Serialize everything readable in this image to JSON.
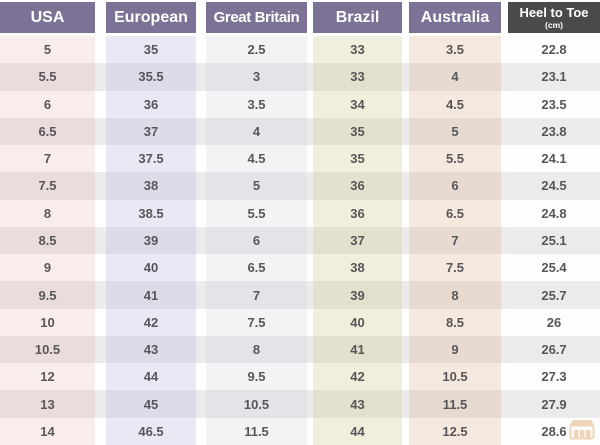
{
  "table": {
    "columns": [
      {
        "id": "usa",
        "label": "USA",
        "sublabel": "",
        "header_bg": "#7b7296",
        "header_fg": "#ffffff",
        "row_bg_odd": "#f9edeb",
        "row_bg_even": "#e9dcdb",
        "values": [
          "5",
          "5.5",
          "6",
          "6.5",
          "7",
          "7.5",
          "8",
          "8.5",
          "9",
          "9.5",
          "10",
          "10.5",
          "12",
          "13",
          "14"
        ]
      },
      {
        "id": "european",
        "label": "European",
        "sublabel": "",
        "header_bg": "#7b7296",
        "header_fg": "#ffffff",
        "row_bg_odd": "#e9e8f4",
        "row_bg_even": "#dcdbe8",
        "values": [
          "35",
          "35.5",
          "36",
          "37",
          "37.5",
          "38",
          "38.5",
          "39",
          "40",
          "41",
          "42",
          "43",
          "44",
          "45",
          "46.5"
        ]
      },
      {
        "id": "great-britain",
        "label": "Great Britain",
        "sublabel": "",
        "header_bg": "#7b7296",
        "header_fg": "#ffffff",
        "row_bg_odd": "#f3f3f6",
        "row_bg_even": "#e4e3e7",
        "values": [
          "2.5",
          "3",
          "3.5",
          "4",
          "4.5",
          "5",
          "5.5",
          "6",
          "6.5",
          "7",
          "7.5",
          "8",
          "9.5",
          "10.5",
          "11.5"
        ]
      },
      {
        "id": "brazil",
        "label": "Brazil",
        "sublabel": "",
        "header_bg": "#7b7296",
        "header_fg": "#ffffff",
        "row_bg_odd": "#f0efdc",
        "row_bg_even": "#e2e1cd",
        "values": [
          "33",
          "33",
          "34",
          "35",
          "35",
          "36",
          "36",
          "37",
          "38",
          "39",
          "40",
          "41",
          "42",
          "43",
          "44"
        ]
      },
      {
        "id": "australia",
        "label": "Australia",
        "sublabel": "",
        "header_bg": "#7b7296",
        "header_fg": "#ffffff",
        "row_bg_odd": "#f5e9df",
        "row_bg_even": "#e7dad1",
        "values": [
          "3.5",
          "4",
          "4.5",
          "5",
          "5.5",
          "6",
          "6.5",
          "7",
          "7.5",
          "8",
          "8.5",
          "9",
          "10.5",
          "11.5",
          "12.5"
        ]
      },
      {
        "id": "heel-to-toe",
        "label": "Heel to Toe",
        "sublabel": "(cm)",
        "header_bg": "#4b494b",
        "header_fg": "#ffffff",
        "row_bg_odd": "#fdfdfd",
        "row_bg_even": "#eceaeb",
        "values": [
          "22.8",
          "23.1",
          "23.5",
          "23.8",
          "24.1",
          "24.5",
          "24.8",
          "25.1",
          "25.4",
          "25.7",
          "26",
          "26.7",
          "27.3",
          "27.9",
          "28.6"
        ]
      }
    ]
  },
  "chart_data": {
    "type": "table",
    "title": "Shoe size conversion table",
    "columns": [
      "USA",
      "European",
      "Great Britain",
      "Brazil",
      "Australia",
      "Heel to Toe (cm)"
    ],
    "rows": [
      [
        "5",
        "35",
        "2.5",
        "33",
        "3.5",
        "22.8"
      ],
      [
        "5.5",
        "35.5",
        "3",
        "33",
        "4",
        "23.1"
      ],
      [
        "6",
        "36",
        "3.5",
        "34",
        "4.5",
        "23.5"
      ],
      [
        "6.5",
        "37",
        "4",
        "35",
        "5",
        "23.8"
      ],
      [
        "7",
        "37.5",
        "4.5",
        "35",
        "5.5",
        "24.1"
      ],
      [
        "7.5",
        "38",
        "5",
        "36",
        "6",
        "24.5"
      ],
      [
        "8",
        "38.5",
        "5.5",
        "36",
        "6.5",
        "24.8"
      ],
      [
        "8.5",
        "39",
        "6",
        "37",
        "7",
        "25.1"
      ],
      [
        "9",
        "40",
        "6.5",
        "38",
        "7.5",
        "25.4"
      ],
      [
        "9.5",
        "41",
        "7",
        "39",
        "8",
        "25.7"
      ],
      [
        "10",
        "42",
        "7.5",
        "40",
        "8.5",
        "26"
      ],
      [
        "10.5",
        "43",
        "8",
        "41",
        "9",
        "26.7"
      ],
      [
        "12",
        "44",
        "9.5",
        "42",
        "10.5",
        "27.3"
      ],
      [
        "13",
        "45",
        "10.5",
        "43",
        "11.5",
        "27.9"
      ],
      [
        "14",
        "46.5",
        "11.5",
        "44",
        "12.5",
        "28.6"
      ]
    ]
  },
  "colors": {
    "header_purple": "#7b7296",
    "header_dark": "#4b494b",
    "cell_text": "#585658",
    "stripe_even": "#eceaeb",
    "watermark_orange": "#dd9a57"
  },
  "watermark": {
    "icon": "shop-logo-icon"
  }
}
